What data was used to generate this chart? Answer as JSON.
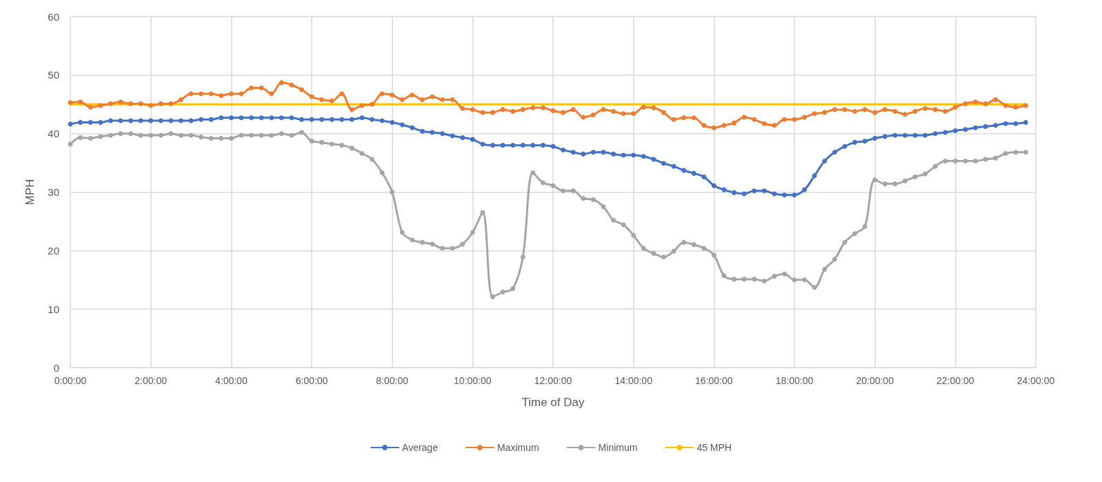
{
  "chart_data": {
    "type": "line",
    "xlabel": "Time of Day",
    "ylabel": "MPH",
    "xlim": [
      0,
      24
    ],
    "xticks": [
      {
        "value": 0,
        "label": "0:00:00"
      },
      {
        "value": 2,
        "label": "2:00:00"
      },
      {
        "value": 4,
        "label": "4:00:00"
      },
      {
        "value": 6,
        "label": "6:00:00"
      },
      {
        "value": 8,
        "label": "8:00:00"
      },
      {
        "value": 10,
        "label": "10:00:00"
      },
      {
        "value": 12,
        "label": "12:00:00"
      },
      {
        "value": 14,
        "label": "14:00:00"
      },
      {
        "value": 16,
        "label": "16:00:00"
      },
      {
        "value": 18,
        "label": "18:00:00"
      },
      {
        "value": 20,
        "label": "20:00:00"
      },
      {
        "value": 22,
        "label": "22:00:00"
      },
      {
        "value": 24,
        "label": "24:00:00"
      }
    ],
    "ylim": [
      0,
      60
    ],
    "yticks": [
      0,
      10,
      20,
      30,
      40,
      50,
      60
    ],
    "grid": true,
    "legend": "bottom",
    "marker": "circle",
    "line_style": "solid",
    "x": [
      0,
      0.25,
      0.5,
      0.75,
      1,
      1.25,
      1.5,
      1.75,
      2,
      2.25,
      2.5,
      2.75,
      3,
      3.25,
      3.5,
      3.75,
      4,
      4.25,
      4.5,
      4.75,
      5,
      5.25,
      5.5,
      5.75,
      6,
      6.25,
      6.5,
      6.75,
      7,
      7.25,
      7.5,
      7.75,
      8,
      8.25,
      8.5,
      8.75,
      9,
      9.25,
      9.5,
      9.75,
      10,
      10.25,
      10.5,
      10.75,
      11,
      11.25,
      11.5,
      11.75,
      12,
      12.25,
      12.5,
      12.75,
      13,
      13.25,
      13.5,
      13.75,
      14,
      14.25,
      14.5,
      14.75,
      15,
      15.25,
      15.5,
      15.75,
      16,
      16.25,
      16.5,
      16.75,
      17,
      17.25,
      17.5,
      17.75,
      18,
      18.25,
      18.5,
      18.75,
      19,
      19.25,
      19.5,
      19.75,
      20,
      20.25,
      20.5,
      20.75,
      21,
      21.25,
      21.5,
      21.75,
      22,
      22.25,
      22.5,
      22.75,
      23,
      23.25,
      23.5,
      23.75
    ],
    "series": [
      {
        "name": "Average",
        "color": "#4472c4",
        "values": [
          41.6,
          41.9,
          41.9,
          41.9,
          42.2,
          42.2,
          42.2,
          42.2,
          42.2,
          42.2,
          42.2,
          42.2,
          42.2,
          42.4,
          42.4,
          42.7,
          42.7,
          42.7,
          42.7,
          42.7,
          42.7,
          42.7,
          42.7,
          42.4,
          42.4,
          42.4,
          42.4,
          42.4,
          42.4,
          42.7,
          42.4,
          42.2,
          41.9,
          41.5,
          41.0,
          40.4,
          40.2,
          40.0,
          39.6,
          39.3,
          39.0,
          38.2,
          38.0,
          38.0,
          38.0,
          38.0,
          38.0,
          38.0,
          37.8,
          37.2,
          36.8,
          36.5,
          36.8,
          36.8,
          36.5,
          36.3,
          36.3,
          36.1,
          35.6,
          34.9,
          34.4,
          33.7,
          33.2,
          32.6,
          31.1,
          30.4,
          29.9,
          29.7,
          30.2,
          30.2,
          29.7,
          29.5,
          29.5,
          30.4,
          32.8,
          35.3,
          36.8,
          37.8,
          38.5,
          38.7,
          39.2,
          39.5,
          39.7,
          39.7,
          39.7,
          39.7,
          40.0,
          40.2,
          40.5,
          40.7,
          41.0,
          41.2,
          41.4,
          41.7,
          41.7,
          41.9
        ]
      },
      {
        "name": "Maximum",
        "color": "#ed7d31",
        "values": [
          45.3,
          45.4,
          44.5,
          44.8,
          45.1,
          45.4,
          45.1,
          45.1,
          44.8,
          45.1,
          45.1,
          45.8,
          46.8,
          46.8,
          46.8,
          46.5,
          46.8,
          46.8,
          47.8,
          47.8,
          46.8,
          48.7,
          48.3,
          47.5,
          46.3,
          45.8,
          45.6,
          46.8,
          44.1,
          44.8,
          45.0,
          46.8,
          46.6,
          45.8,
          46.6,
          45.8,
          46.3,
          45.8,
          45.8,
          44.3,
          44.1,
          43.6,
          43.6,
          44.1,
          43.8,
          44.1,
          44.4,
          44.4,
          43.9,
          43.6,
          44.1,
          42.8,
          43.2,
          44.1,
          43.8,
          43.4,
          43.4,
          44.5,
          44.4,
          43.6,
          42.4,
          42.7,
          42.7,
          41.4,
          41.0,
          41.4,
          41.8,
          42.8,
          42.4,
          41.7,
          41.4,
          42.4,
          42.4,
          42.8,
          43.4,
          43.6,
          44.1,
          44.1,
          43.8,
          44.1,
          43.6,
          44.1,
          43.8,
          43.3,
          43.8,
          44.3,
          44.1,
          43.8,
          44.5,
          45.1,
          45.4,
          45.1,
          45.8,
          44.8,
          44.5,
          44.8
        ]
      },
      {
        "name": "Minimum",
        "color": "#a5a5a5",
        "values": [
          38.2,
          39.3,
          39.2,
          39.5,
          39.7,
          40.0,
          40.0,
          39.7,
          39.7,
          39.7,
          40.0,
          39.7,
          39.7,
          39.4,
          39.2,
          39.2,
          39.2,
          39.7,
          39.7,
          39.7,
          39.7,
          40.0,
          39.7,
          40.2,
          38.7,
          38.5,
          38.2,
          38.0,
          37.5,
          36.6,
          35.6,
          33.3,
          30.0,
          23.1,
          21.8,
          21.4,
          21.1,
          20.4,
          20.4,
          21.1,
          23.1,
          26.5,
          12.1,
          12.9,
          13.5,
          18.9,
          33.3,
          31.6,
          31.1,
          30.2,
          30.2,
          28.9,
          28.7,
          27.5,
          25.2,
          24.4,
          22.6,
          20.4,
          19.5,
          18.9,
          19.9,
          21.4,
          21.0,
          20.4,
          19.2,
          15.7,
          15.1,
          15.1,
          15.1,
          14.8,
          15.6,
          16.0,
          15.0,
          15.0,
          13.7,
          16.8,
          18.5,
          21.4,
          22.9,
          24.1,
          32.1,
          31.4,
          31.4,
          31.9,
          32.6,
          33.1,
          34.4,
          35.3,
          35.3,
          35.3,
          35.3,
          35.6,
          35.8,
          36.6,
          36.8,
          36.8
        ]
      },
      {
        "name": "45 MPH",
        "color": "#ffc000",
        "marker": "none",
        "x": [
          0,
          23.75
        ],
        "values": [
          45,
          45
        ]
      }
    ]
  }
}
